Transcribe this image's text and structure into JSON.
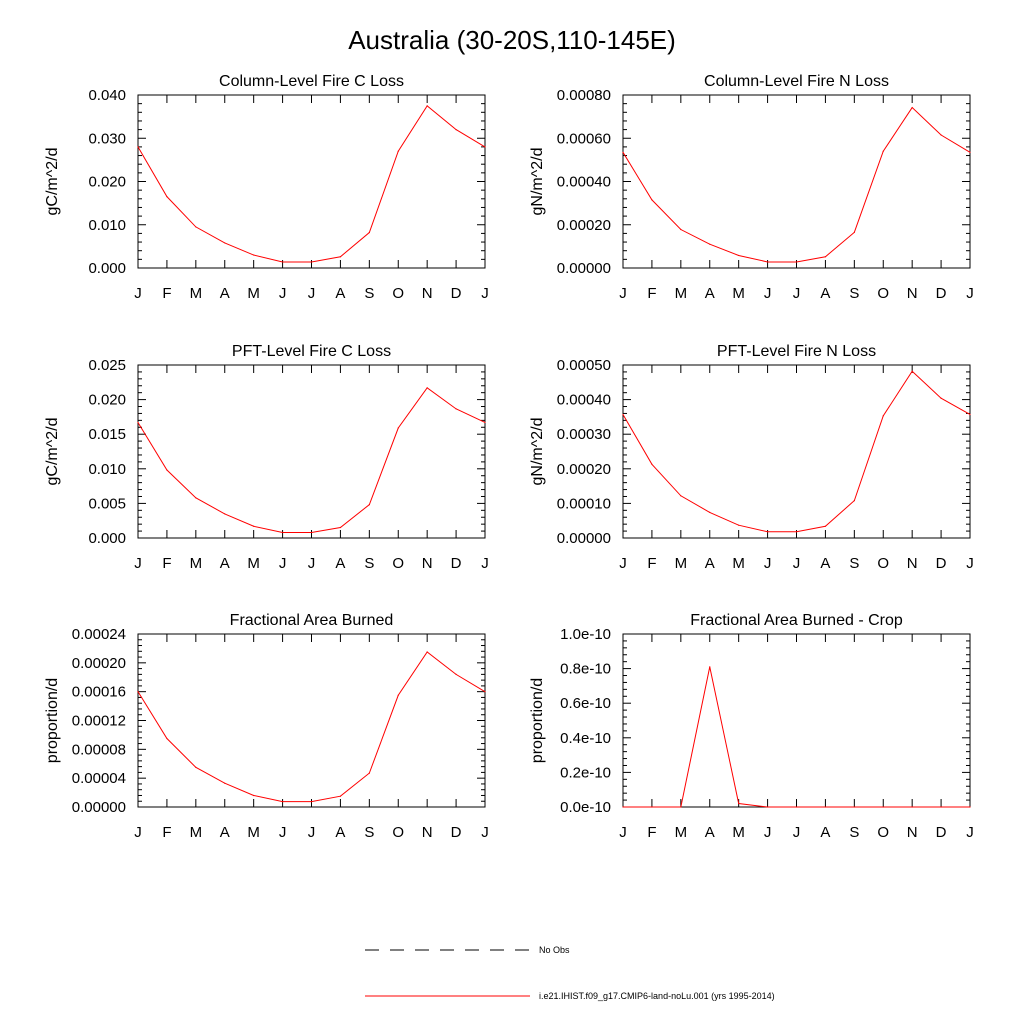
{
  "figure": {
    "title": "Australia (30-20S,110-145E)"
  },
  "legend": {
    "items": [
      {
        "label": "No Obs",
        "style": "dashed",
        "color": "#000000"
      },
      {
        "label": "i.e21.IHIST.f09_g17.CMIP6-land-noLu.001 (yrs 1995-2014)",
        "style": "solid",
        "color": "#ff0000"
      }
    ]
  },
  "chart_data": [
    {
      "type": "line",
      "title": "Column-Level Fire C Loss",
      "ylabel": "gC/m^2/d",
      "x": [
        "J",
        "F",
        "M",
        "A",
        "M",
        "J",
        "J",
        "A",
        "S",
        "O",
        "N",
        "D",
        "J"
      ],
      "ylim": [
        0,
        0.04
      ],
      "yticks": [
        "0.000",
        "0.010",
        "0.020",
        "0.030",
        "0.040"
      ],
      "series": [
        {
          "color": "#ff0000",
          "values": [
            0.028,
            0.0165,
            0.0095,
            0.0058,
            0.003,
            0.0014,
            0.0014,
            0.0026,
            0.0082,
            0.027,
            0.0375,
            0.032,
            0.028
          ]
        }
      ]
    },
    {
      "type": "line",
      "title": "Column-Level Fire N Loss",
      "ylabel": "gN/m^2/d",
      "x": [
        "J",
        "F",
        "M",
        "A",
        "M",
        "J",
        "J",
        "A",
        "S",
        "O",
        "N",
        "D",
        "J"
      ],
      "ylim": [
        0,
        0.0008
      ],
      "yticks": [
        "0.00000",
        "0.00020",
        "0.00040",
        "0.00060",
        "0.00080"
      ],
      "series": [
        {
          "color": "#ff0000",
          "values": [
            0.000535,
            0.000315,
            0.000178,
            0.00011,
            5.8e-05,
            2.8e-05,
            2.8e-05,
            5.2e-05,
            0.000165,
            0.00054,
            0.000742,
            0.000615,
            0.000535
          ]
        }
      ]
    },
    {
      "type": "line",
      "title": "PFT-Level Fire C Loss",
      "ylabel": "gC/m^2/d",
      "x": [
        "J",
        "F",
        "M",
        "A",
        "M",
        "J",
        "J",
        "A",
        "S",
        "O",
        "N",
        "D",
        "J"
      ],
      "ylim": [
        0,
        0.028
      ],
      "yticks": [
        "0.000",
        "0.005",
        "0.010",
        "0.015",
        "0.020",
        "0.025"
      ],
      "series": [
        {
          "color": "#ff0000",
          "values": [
            0.0187,
            0.011,
            0.0065,
            0.0039,
            0.0019,
            0.0009,
            0.0009,
            0.0017,
            0.0054,
            0.0178,
            0.0243,
            0.0209,
            0.0187
          ]
        }
      ]
    },
    {
      "type": "line",
      "title": "PFT-Level Fire N Loss",
      "ylabel": "gN/m^2/d",
      "x": [
        "J",
        "F",
        "M",
        "A",
        "M",
        "J",
        "J",
        "A",
        "S",
        "O",
        "N",
        "D",
        "J"
      ],
      "ylim": [
        0,
        0.0005
      ],
      "yticks": [
        "0.00000",
        "0.00010",
        "0.00020",
        "0.00030",
        "0.00040",
        "0.00050"
      ],
      "series": [
        {
          "color": "#ff0000",
          "values": [
            0.000357,
            0.000213,
            0.000122,
            7.4e-05,
            3.7e-05,
            1.8e-05,
            1.8e-05,
            3.4e-05,
            0.000108,
            0.000353,
            0.000482,
            0.000404,
            0.000357
          ]
        }
      ]
    },
    {
      "type": "line",
      "title": "Fractional Area Burned",
      "ylabel": "proportion/d",
      "x": [
        "J",
        "F",
        "M",
        "A",
        "M",
        "J",
        "J",
        "A",
        "S",
        "O",
        "N",
        "D",
        "J"
      ],
      "ylim": [
        0,
        0.00024
      ],
      "yticks": [
        "0.00000",
        "0.00004",
        "0.00008",
        "0.00012",
        "0.00016",
        "0.00020",
        "0.00024"
      ],
      "series": [
        {
          "color": "#ff0000",
          "values": [
            0.00016,
            9.5e-05,
            5.5e-05,
            3.3e-05,
            1.6e-05,
            7.5e-06,
            7.5e-06,
            1.5e-05,
            4.7e-05,
            0.000155,
            0.000215,
            0.000184,
            0.00016
          ]
        }
      ]
    },
    {
      "type": "line",
      "title": "Fractional Area Burned - Crop",
      "ylabel": "proportion/d",
      "x": [
        "J",
        "F",
        "M",
        "A",
        "M",
        "J",
        "J",
        "A",
        "S",
        "O",
        "N",
        "D",
        "J"
      ],
      "ylim": [
        0,
        1e-10
      ],
      "yticks": [
        "0.0e-10",
        "0.2e-10",
        "0.4e-10",
        "0.6e-10",
        "0.8e-10",
        "1.0e-10"
      ],
      "series": [
        {
          "color": "#ff0000",
          "values": [
            0,
            0,
            0,
            8.1e-11,
            2e-12,
            0,
            0,
            0,
            0,
            0,
            0,
            0,
            0
          ]
        }
      ]
    }
  ]
}
